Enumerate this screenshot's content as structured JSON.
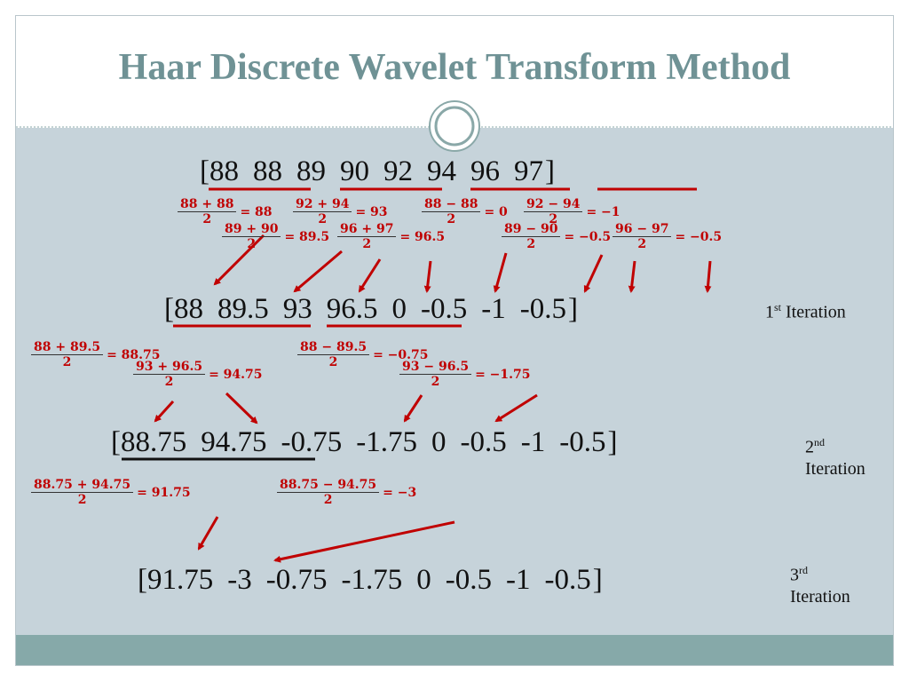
{
  "title": "Haar Discrete Wavelet Transform Method",
  "vectors": [
    {
      "open": "[",
      "close": "]",
      "entries": [
        "88",
        "88",
        "89",
        "90",
        "92",
        "94",
        "96",
        "97"
      ]
    },
    {
      "open": "[",
      "close": "]",
      "entries": [
        "88",
        "89.5",
        "93",
        "96.5",
        "0",
        "-0.5",
        "-1",
        "-0.5"
      ],
      "label": {
        "number": "1",
        "suffix": "st",
        "word": "Iteration"
      }
    },
    {
      "open": "[",
      "close": "]",
      "entries": [
        "88.75",
        "94.75",
        "-0.75",
        "-1.75",
        "0",
        "-0.5",
        "-1",
        "-0.5"
      ],
      "label": {
        "number": "2",
        "suffix": "nd",
        "word": "Iteration"
      }
    },
    {
      "open": "[",
      "close": "]",
      "entries": [
        "91.75",
        "-3",
        "-0.75",
        "-1.75",
        "0",
        "-0.5",
        "-1",
        "-0.5"
      ],
      "label": {
        "number": "3",
        "suffix": "rd",
        "word": "Iteration"
      }
    }
  ],
  "formulas": [
    [
      {
        "numerator": "88 + 88",
        "denominator": "2",
        "result": "= 88"
      },
      {
        "numerator": "89 + 90",
        "denominator": "2",
        "result": "= 89.5"
      },
      {
        "numerator": "92 + 94",
        "denominator": "2",
        "result": "= 93"
      },
      {
        "numerator": "96 + 97",
        "denominator": "2",
        "result": "= 96.5"
      },
      {
        "numerator": "88 − 88",
        "denominator": "2",
        "result": "= 0"
      },
      {
        "numerator": "89 − 90",
        "denominator": "2",
        "result": "= −0.5"
      },
      {
        "numerator": "92 − 94",
        "denominator": "2",
        "result": "= −1"
      },
      {
        "numerator": "96 − 97",
        "denominator": "2",
        "result": "= −0.5"
      }
    ],
    [
      {
        "numerator": "88 + 89.5",
        "denominator": "2",
        "result": "= 88.75"
      },
      {
        "numerator": "93 + 96.5",
        "denominator": "2",
        "result": "= 94.75"
      },
      {
        "numerator": "88 − 89.5",
        "denominator": "2",
        "result": "= −0.75"
      },
      {
        "numerator": "93 − 96.5",
        "denominator": "2",
        "result": "= −1.75"
      }
    ],
    [
      {
        "numerator": "88.75 + 94.75",
        "denominator": "2",
        "result": "= 91.75"
      },
      {
        "numerator": "88.75 − 94.75",
        "denominator": "2",
        "result": "= −3"
      }
    ]
  ]
}
